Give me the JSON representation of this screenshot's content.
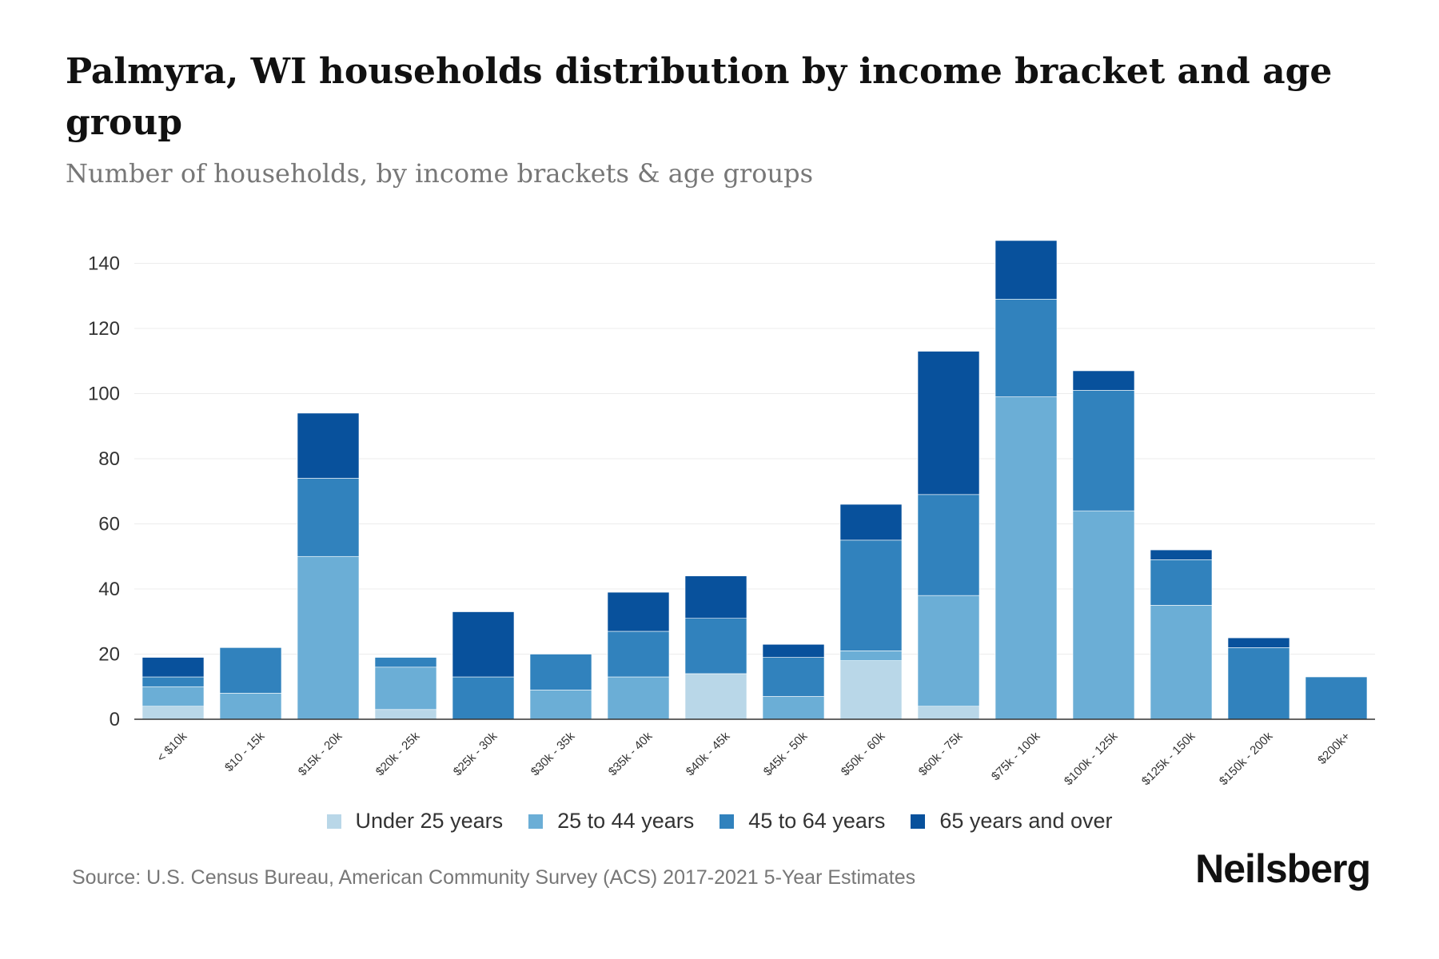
{
  "title": "Palmyra, WI households distribution by income bracket and age group",
  "subtitle": "Number of households, by income brackets & age groups",
  "source": "Source: U.S. Census Bureau, American Community Survey (ACS) 2017-2021 5-Year Estimates",
  "logo": "Neilsberg",
  "chart_data": {
    "type": "bar",
    "stacked": true,
    "title": "Palmyra, WI households distribution by income bracket and age group",
    "xlabel": "",
    "ylabel": "",
    "ylim": [
      0,
      150
    ],
    "yticks": [
      0,
      20,
      40,
      60,
      80,
      100,
      120,
      140
    ],
    "grid": true,
    "legend_position": "bottom",
    "categories": [
      "< $10k",
      "$10 - 15k",
      "$15k - 20k",
      "$20k - 25k",
      "$25k - 30k",
      "$30k - 35k",
      "$35k - 40k",
      "$40k - 45k",
      "$45k - 50k",
      "$50k - 60k",
      "$60k - 75k",
      "$75k - 100k",
      "$100k - 125k",
      "$125k - 150k",
      "$150k - 200k",
      "$200k+"
    ],
    "series": [
      {
        "name": "Under 25 years",
        "color": "#b9d7e8",
        "values": [
          4,
          0,
          0,
          3,
          0,
          0,
          0,
          14,
          0,
          18,
          4,
          0,
          0,
          0,
          0,
          0
        ]
      },
      {
        "name": "25 to 44 years",
        "color": "#6baed6",
        "values": [
          6,
          8,
          50,
          13,
          0,
          9,
          13,
          0,
          7,
          3,
          34,
          99,
          64,
          35,
          0,
          0
        ]
      },
      {
        "name": "45 to 64 years",
        "color": "#3182bd",
        "values": [
          3,
          14,
          24,
          3,
          13,
          11,
          14,
          17,
          12,
          34,
          31,
          30,
          37,
          14,
          22,
          13
        ]
      },
      {
        "name": "65 years and over",
        "color": "#08519c",
        "values": [
          6,
          0,
          20,
          0,
          20,
          0,
          12,
          13,
          4,
          11,
          44,
          18,
          6,
          3,
          3,
          0
        ]
      }
    ]
  }
}
